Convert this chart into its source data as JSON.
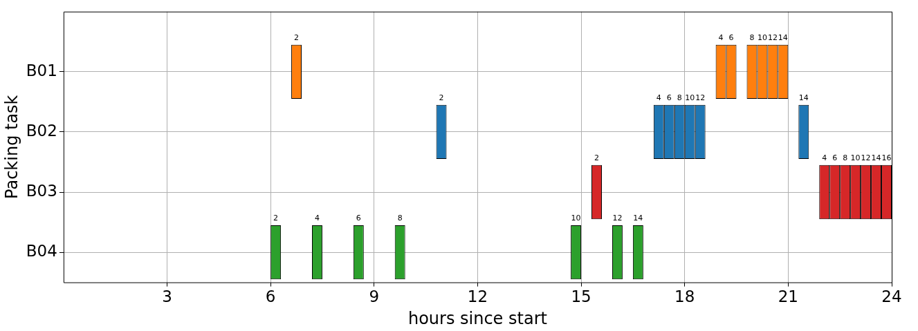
{
  "chart_data": {
    "type": "bar",
    "orientation": "horizontal",
    "xlabel": "hours since start",
    "ylabel": "Packing task",
    "categories": [
      "B01",
      "B02",
      "B03",
      "B04"
    ],
    "series": [
      {
        "colors": [
          "#ff7f0e",
          "#1f77b4",
          "#d62728",
          "#2ca02c"
        ],
        "base": [
          6.6,
          10.8,
          15.3,
          6.0
        ],
        "values": [
          0.3,
          0.3,
          0.3,
          0.3
        ]
      },
      {
        "colors": [
          "#ff7f0e",
          "#1f77b4",
          "#d62728",
          "#2ca02c"
        ],
        "base": [
          18.9,
          17.1,
          21.9,
          7.2
        ],
        "values": [
          0.3,
          0.3,
          0.3,
          0.3
        ]
      },
      {
        "colors": [
          "#ff7f0e",
          "#1f77b4",
          "#d62728",
          "#2ca02c"
        ],
        "base": [
          19.2,
          17.4,
          22.2,
          8.4
        ],
        "values": [
          0.3,
          0.3,
          0.3,
          0.3
        ]
      },
      {
        "colors": [
          "#ff7f0e",
          "#1f77b4",
          "#d62728",
          "#2ca02c"
        ],
        "base": [
          19.8,
          17.7,
          22.5,
          9.6
        ],
        "values": [
          0.3,
          0.3,
          0.3,
          0.3
        ]
      },
      {
        "colors": [
          "#ff7f0e",
          "#1f77b4",
          "#d62728",
          "#2ca02c"
        ],
        "base": [
          20.1,
          18.0,
          22.8,
          14.7
        ],
        "values": [
          0.3,
          0.3,
          0.3,
          0.3
        ]
      },
      {
        "colors": [
          "#ff7f0e",
          "#1f77b4",
          "#d62728",
          "#2ca02c"
        ],
        "base": [
          20.4,
          18.3,
          23.1,
          15.9
        ],
        "values": [
          0.3,
          0.3,
          0.3,
          0.3
        ]
      },
      {
        "colors": [
          "#ff7f0e",
          "#1f77b4",
          "#d62728",
          "#2ca02c"
        ],
        "base": [
          20.7,
          21.3,
          23.4,
          16.5
        ],
        "values": [
          0.3,
          0.3,
          0.3,
          0.3
        ]
      },
      {
        "colors": [
          "#ff7f0e",
          "#1f77b4",
          "#d62728",
          "#2ca02c"
        ],
        "base": [
          null,
          null,
          23.7,
          null
        ],
        "values": [
          null,
          null,
          0.3,
          null
        ]
      }
    ],
    "annotations": [
      "2",
      "2",
      "2",
      "2",
      "4",
      "4",
      "4",
      "4",
      "6",
      "6",
      "6",
      "6",
      "8",
      "8",
      "8",
      "8",
      "10",
      "10",
      "10",
      "10",
      "12",
      "12",
      "12",
      "12",
      "14",
      "14",
      "14",
      "14",
      "16"
    ],
    "xlim": [
      0,
      24
    ],
    "xticks": [
      3,
      6,
      9,
      12,
      15,
      18,
      21,
      24
    ],
    "grid": true,
    "legend": false
  }
}
